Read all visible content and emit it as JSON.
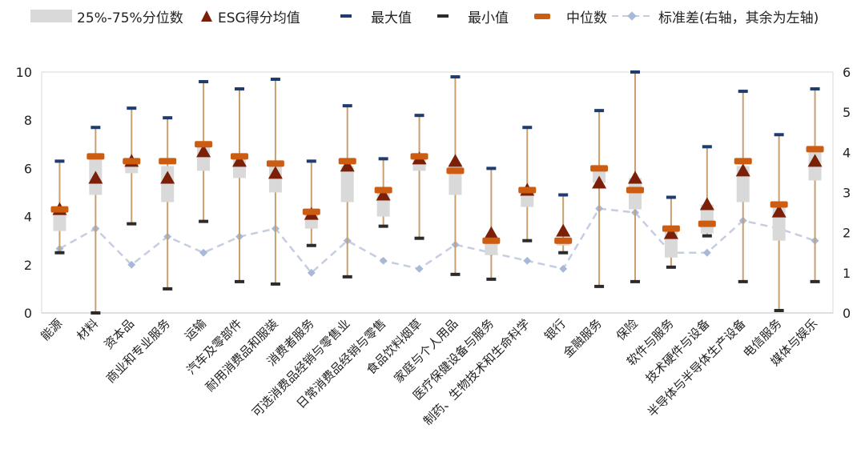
{
  "chart_data": {
    "type": "box",
    "legend": {
      "iqr": "25%-75%分位数",
      "mean": "ESG得分均值",
      "max": "最大值",
      "min": "最小值",
      "median": "中位数",
      "std": "标准差(右轴，其余为左轴)"
    },
    "colors": {
      "iqr": "#d9d9d9",
      "mean": "#7b1f08",
      "max": "#1f3c6e",
      "min": "#2b2b2b",
      "median": "#cc5c12",
      "std": "#c5cde0",
      "whisker": "#c8a070"
    },
    "y_left": {
      "min": 0,
      "max": 10,
      "ticks": [
        "0",
        "2",
        "4",
        "6",
        "8",
        "10"
      ]
    },
    "y_right": {
      "min": 0,
      "max": 6,
      "ticks": [
        "0",
        "1",
        "2",
        "3",
        "4",
        "5",
        "6"
      ]
    },
    "categories": [
      "能源",
      "材料",
      "资本品",
      "商业和专业服务",
      "运输",
      "汽车及零部件",
      "耐用消费品和服装",
      "消费者服务",
      "可选消费品经销与零售业",
      "日常消费品经销与零售",
      "食品饮料烟草",
      "家庭与个人用品",
      "医疗保健设备与服务",
      "制药、生物技术和生命科学",
      "银行",
      "金融服务",
      "保险",
      "软件与服务",
      "技术硬件与设备",
      "半导体与半导体生产设备",
      "电信服务",
      "媒体与娱乐"
    ],
    "q1": [
      3.4,
      4.9,
      5.8,
      4.6,
      5.9,
      5.6,
      5.0,
      3.5,
      4.6,
      4.0,
      5.9,
      4.9,
      2.4,
      4.4,
      2.8,
      5.4,
      4.3,
      2.3,
      3.3,
      4.6,
      3.0,
      5.5
    ],
    "q3": [
      4.2,
      6.5,
      6.2,
      6.1,
      6.9,
      6.4,
      6.1,
      4.2,
      6.1,
      5.0,
      6.5,
      6.2,
      3.0,
      5.2,
      3.1,
      5.9,
      5.6,
      3.4,
      4.5,
      6.1,
      4.4,
      6.7
    ],
    "mean": [
      4.3,
      5.6,
      6.3,
      5.6,
      6.7,
      6.3,
      5.8,
      4.1,
      6.1,
      4.9,
      6.4,
      6.3,
      3.3,
      5.1,
      3.4,
      5.4,
      5.6,
      3.3,
      4.5,
      5.9,
      4.2,
      6.3
    ],
    "median": [
      4.3,
      6.5,
      6.3,
      6.3,
      7.0,
      6.5,
      6.2,
      4.2,
      6.3,
      5.1,
      6.5,
      5.9,
      3.0,
      5.1,
      3.0,
      6.0,
      5.1,
      3.5,
      3.7,
      6.3,
      4.5,
      6.8
    ],
    "max": [
      6.3,
      7.7,
      8.5,
      8.1,
      9.6,
      9.3,
      9.7,
      6.3,
      8.6,
      6.4,
      8.2,
      9.8,
      6.0,
      7.7,
      4.9,
      8.4,
      10.0,
      4.8,
      6.9,
      9.2,
      7.4,
      9.3
    ],
    "min": [
      2.5,
      0.0,
      3.7,
      1.0,
      3.8,
      1.3,
      1.2,
      2.8,
      1.5,
      3.6,
      3.1,
      1.6,
      1.4,
      3.0,
      2.5,
      1.1,
      1.3,
      1.9,
      3.2,
      1.3,
      0.1,
      1.3
    ],
    "std": [
      1.6,
      2.1,
      1.2,
      1.9,
      1.5,
      1.9,
      2.1,
      1.0,
      1.8,
      1.3,
      1.1,
      1.7,
      1.5,
      1.3,
      1.1,
      2.6,
      2.5,
      1.5,
      1.5,
      2.3,
      2.1,
      1.8
    ]
  }
}
